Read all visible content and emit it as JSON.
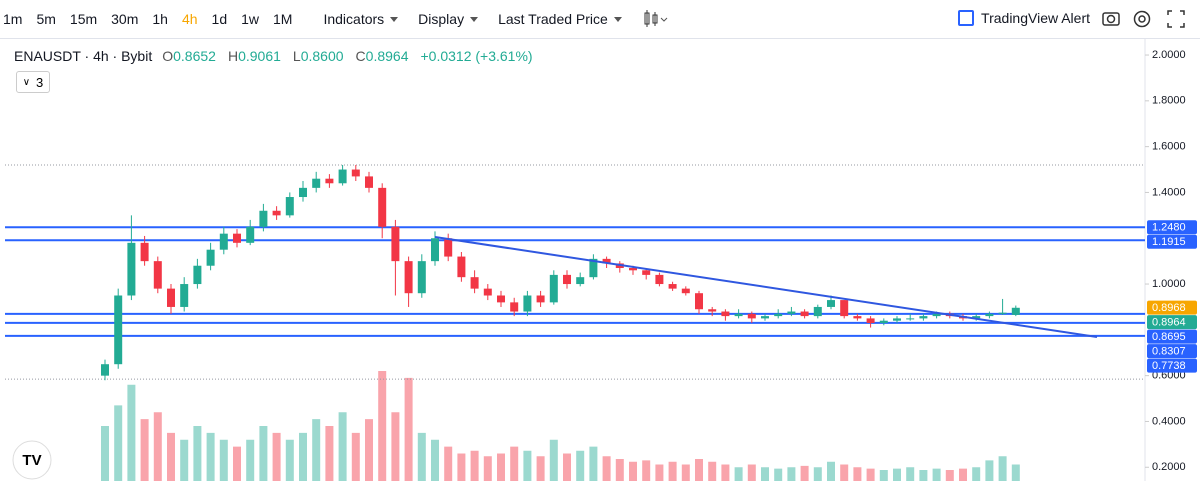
{
  "toolbar": {
    "timeframes": [
      "1m",
      "5m",
      "15m",
      "30m",
      "1h",
      "4h",
      "1d",
      "1w",
      "1M"
    ],
    "menus": [
      "Indicators",
      "Display",
      "Last Traded Price"
    ],
    "alert": "TradingView Alert"
  },
  "legend": {
    "symbol": "ENAUSDT · 4h · Bybit",
    "ohlc": [
      {
        "key": "O",
        "value": "0.8652"
      },
      {
        "key": "H",
        "value": "0.9061"
      },
      {
        "key": "L",
        "value": "0.8600"
      },
      {
        "key": "C",
        "value": "0.8964"
      }
    ],
    "change": "+0.0312 (+3.61%)",
    "indicator_count": "3"
  },
  "chart_data": {
    "type": "candlestick",
    "up_color": "#22ab94",
    "down_color": "#f23645",
    "ylim": [
      0.14,
      2.07
    ],
    "yticks": [
      {
        "value": 2.0,
        "label": "2.0000"
      },
      {
        "value": 1.8,
        "label": "1.8000"
      },
      {
        "value": 1.6,
        "label": "1.6000"
      },
      {
        "value": 1.4,
        "label": "1.4000"
      },
      {
        "value": 1.0,
        "label": "1.0000"
      },
      {
        "value": 0.6,
        "label": "0.6000"
      },
      {
        "value": 0.4,
        "label": "0.4000"
      },
      {
        "value": 0.2,
        "label": "0.2000"
      }
    ],
    "hlines": [
      {
        "value": 1.248,
        "label": "1.2480"
      },
      1.1915,
      0.8695,
      0.8307,
      0.7738
    ],
    "hline_color": "#2962ff",
    "dotted_lines": [
      1.52,
      0.585
    ],
    "mark_price": 0.8968,
    "mark_color": "#f7a600",
    "open": [
      0.6,
      0.65,
      0.95,
      1.18,
      1.1,
      0.98,
      0.9,
      1.0,
      1.08,
      1.15,
      1.22,
      1.18,
      1.25,
      1.32,
      1.3,
      1.38,
      1.42,
      1.46,
      1.44,
      1.5,
      1.47,
      1.42,
      1.25,
      1.1,
      0.96,
      1.1,
      1.2,
      1.12,
      1.03,
      0.98,
      0.95,
      0.92,
      0.88,
      0.95,
      0.92,
      1.04,
      1.0,
      1.03,
      1.11,
      1.09,
      1.07,
      1.06,
      1.04,
      1.0,
      0.98,
      0.96,
      0.89,
      0.88,
      0.86,
      0.87,
      0.85,
      0.86,
      0.87,
      0.88,
      0.86,
      0.9,
      0.93,
      0.86,
      0.85,
      0.83,
      0.84,
      0.85,
      0.85,
      0.86,
      0.87,
      0.86,
      0.85,
      0.86,
      0.87,
      0.8652
    ],
    "high": [
      0.67,
      0.98,
      1.3,
      1.21,
      1.12,
      1.0,
      1.03,
      1.11,
      1.18,
      1.25,
      1.24,
      1.28,
      1.35,
      1.34,
      1.4,
      1.45,
      1.49,
      1.48,
      1.52,
      1.52,
      1.49,
      1.44,
      1.28,
      1.12,
      1.13,
      1.23,
      1.22,
      1.14,
      1.06,
      1.0,
      0.97,
      0.94,
      0.97,
      0.97,
      1.06,
      1.06,
      1.05,
      1.13,
      1.12,
      1.1,
      1.08,
      1.07,
      1.05,
      1.01,
      0.99,
      0.97,
      0.9,
      0.89,
      0.89,
      0.88,
      0.87,
      0.89,
      0.9,
      0.89,
      0.91,
      0.95,
      0.93,
      0.87,
      0.86,
      0.85,
      0.86,
      0.87,
      0.87,
      0.88,
      0.88,
      0.87,
      0.87,
      0.88,
      0.935,
      0.9061
    ],
    "low": [
      0.58,
      0.63,
      0.93,
      1.08,
      0.96,
      0.87,
      0.88,
      0.98,
      1.06,
      1.13,
      1.16,
      1.17,
      1.23,
      1.28,
      1.29,
      1.36,
      1.4,
      1.42,
      1.43,
      1.45,
      1.4,
      1.2,
      0.95,
      0.9,
      0.94,
      1.08,
      1.1,
      1.01,
      0.96,
      0.93,
      0.9,
      0.86,
      0.86,
      0.9,
      0.91,
      0.98,
      0.99,
      1.02,
      1.07,
      1.05,
      1.04,
      1.02,
      0.99,
      0.97,
      0.95,
      0.87,
      0.86,
      0.84,
      0.85,
      0.83,
      0.84,
      0.85,
      0.86,
      0.85,
      0.85,
      0.89,
      0.85,
      0.84,
      0.81,
      0.82,
      0.83,
      0.84,
      0.84,
      0.85,
      0.85,
      0.84,
      0.84,
      0.85,
      0.865,
      0.86
    ],
    "close": [
      0.65,
      0.95,
      1.18,
      1.1,
      0.98,
      0.9,
      1.0,
      1.08,
      1.15,
      1.22,
      1.18,
      1.25,
      1.32,
      1.3,
      1.38,
      1.42,
      1.46,
      1.44,
      1.5,
      1.47,
      1.42,
      1.25,
      1.1,
      0.96,
      1.1,
      1.2,
      1.12,
      1.03,
      0.98,
      0.95,
      0.92,
      0.88,
      0.95,
      0.92,
      1.04,
      1.0,
      1.03,
      1.11,
      1.09,
      1.07,
      1.06,
      1.04,
      1.0,
      0.98,
      0.96,
      0.89,
      0.88,
      0.86,
      0.87,
      0.85,
      0.86,
      0.87,
      0.88,
      0.86,
      0.9,
      0.93,
      0.86,
      0.85,
      0.83,
      0.84,
      0.85,
      0.85,
      0.86,
      0.87,
      0.86,
      0.85,
      0.86,
      0.87,
      0.875,
      0.8964
    ],
    "volume": [
      40,
      55,
      70,
      45,
      50,
      35,
      30,
      40,
      35,
      30,
      25,
      30,
      40,
      35,
      30,
      35,
      45,
      40,
      50,
      35,
      45,
      80,
      50,
      75,
      35,
      30,
      25,
      20,
      22,
      18,
      20,
      25,
      22,
      18,
      30,
      20,
      22,
      25,
      18,
      16,
      14,
      15,
      12,
      14,
      12,
      16,
      14,
      12,
      10,
      12,
      10,
      9,
      10,
      11,
      10,
      14,
      12,
      10,
      9,
      8,
      9,
      10,
      8,
      9,
      8,
      9,
      10,
      15,
      18,
      12
    ]
  }
}
